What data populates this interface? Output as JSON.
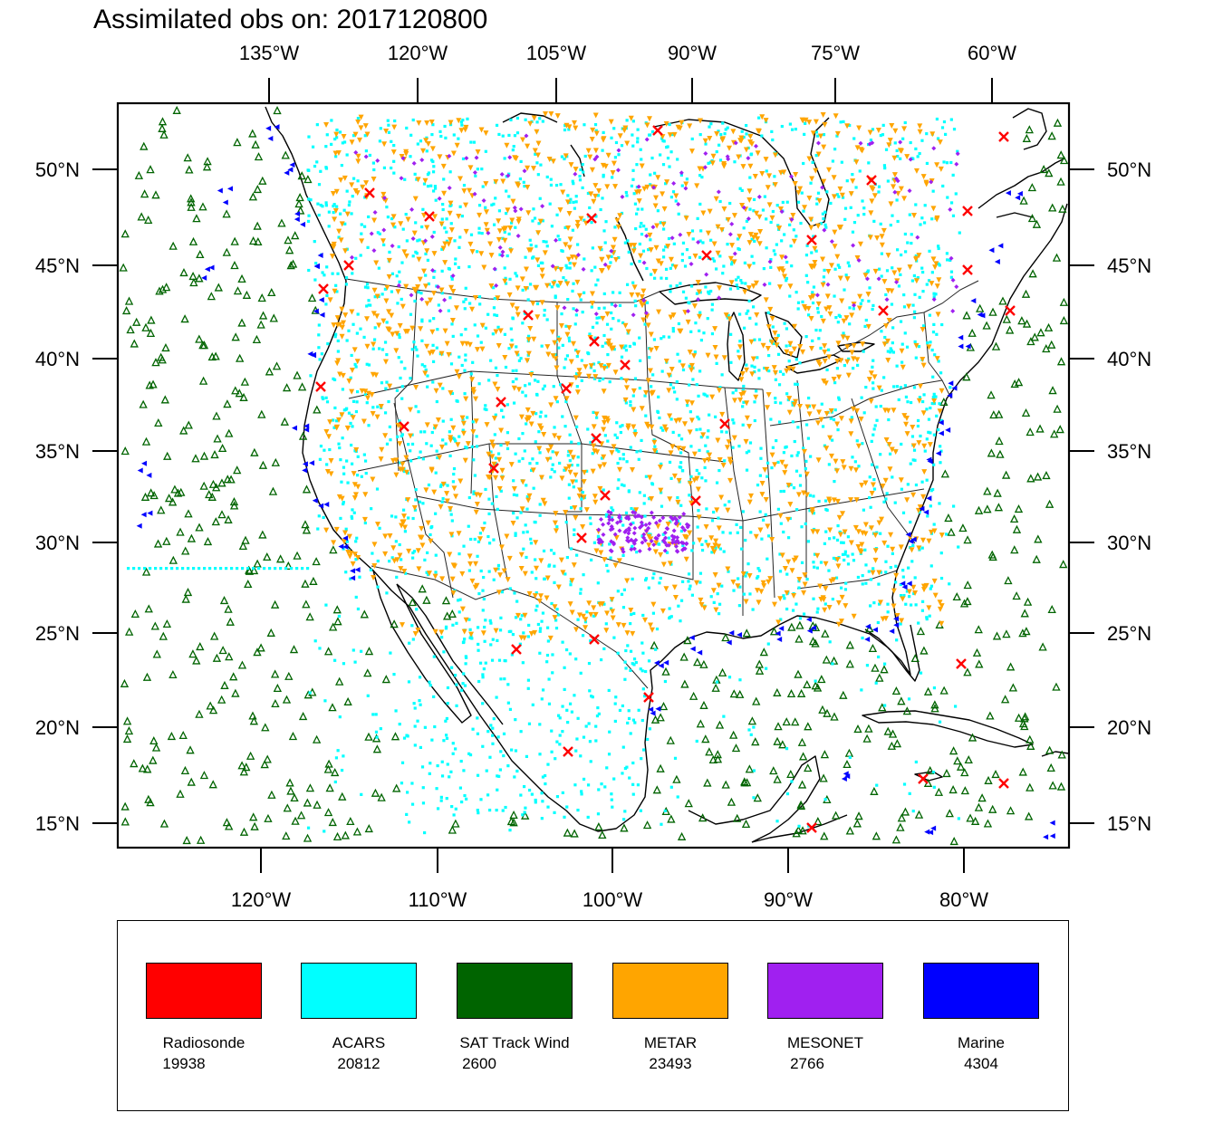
{
  "title": "Assimilated obs on: 2017120800",
  "map": {
    "top_lon_labels": [
      "135°W",
      "120°W",
      "105°W",
      "90°W",
      "75°W",
      "60°W"
    ],
    "bottom_lon_labels": [
      "120°W",
      "110°W",
      "100°W",
      "90°W",
      "80°W"
    ],
    "lat_labels": [
      "50°N",
      "45°N",
      "40°N",
      "35°N",
      "30°N",
      "25°N",
      "20°N",
      "15°N"
    ],
    "frame_color": "#000000",
    "land_outline_color": "#000000"
  },
  "legend": {
    "items": [
      {
        "name": "Radiosonde",
        "count": "19938",
        "color": "#ff0000",
        "marker": "x-mark"
      },
      {
        "name": "ACARS",
        "count": "20812",
        "color": "#00ffff",
        "marker": "square"
      },
      {
        "name": "SAT Track Wind",
        "count": "2600",
        "color": "#006400",
        "marker": "triangle-up"
      },
      {
        "name": "METAR",
        "count": "23493",
        "color": "#ffa500",
        "marker": "triangle-down"
      },
      {
        "name": "MESONET",
        "count": "2766",
        "color": "#a020f0",
        "marker": "diamond"
      },
      {
        "name": "Marine",
        "count": "4304",
        "color": "#0000ff",
        "marker": "triangle-left"
      }
    ]
  }
}
